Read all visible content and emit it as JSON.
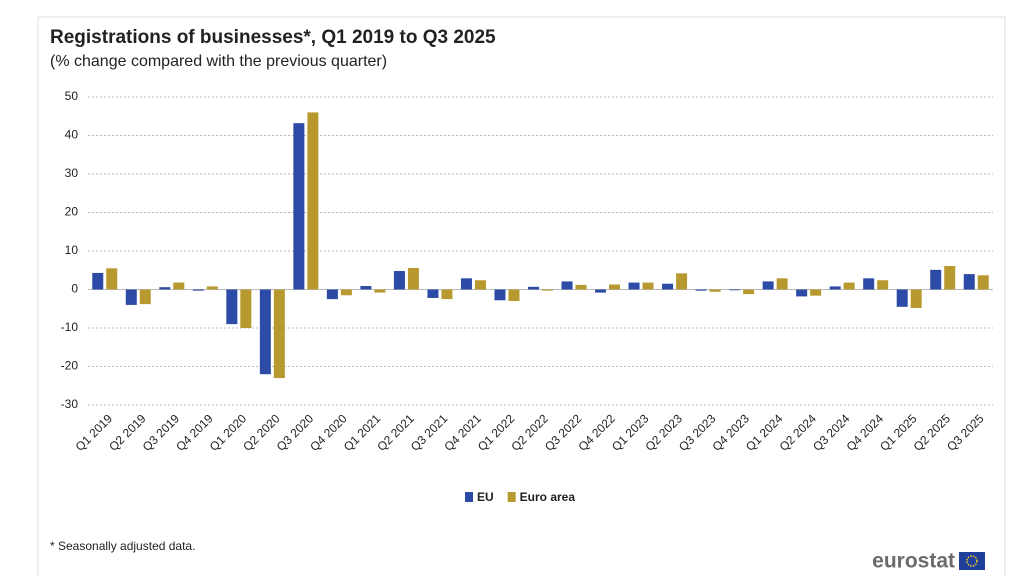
{
  "chart_data": {
    "type": "bar",
    "title": "Registrations of businesses*, Q1 2019 to Q3 2025",
    "subtitle": "(% change compared with the previous quarter)",
    "categories": [
      "Q1 2019",
      "Q2 2019",
      "Q3 2019",
      "Q4 2019",
      "Q1 2020",
      "Q2 2020",
      "Q3 2020",
      "Q4 2020",
      "Q1 2021",
      "Q2 2021",
      "Q3 2021",
      "Q4 2021",
      "Q1 2022",
      "Q2 2022",
      "Q3 2022",
      "Q4 2022",
      "Q1 2023",
      "Q2 2023",
      "Q3 2023",
      "Q4 2023",
      "Q1 2024",
      "Q2 2024",
      "Q3 2024",
      "Q4 2024",
      "Q1 2025",
      "Q2 2025",
      "Q3 2025"
    ],
    "series": [
      {
        "name": "EU",
        "color": "#2b4ba6",
        "values": [
          4.3,
          -4,
          0.6,
          -0.3,
          -9,
          -22,
          43.2,
          -2.5,
          0.9,
          4.8,
          -2.2,
          2.9,
          -2.8,
          0.7,
          2.1,
          -0.8,
          1.8,
          1.5,
          -0.3,
          -0.2,
          2.1,
          -1.8,
          0.8,
          2.9,
          -4.5,
          5.1,
          4
        ]
      },
      {
        "name": "Euro area",
        "color": "#b8992f",
        "values": [
          5.5,
          -3.8,
          1.8,
          0.8,
          -10,
          -23,
          46,
          -1.5,
          -0.8,
          5.6,
          -2.5,
          2.4,
          -3,
          -0.3,
          1.2,
          1.3,
          1.8,
          4.2,
          -0.6,
          -1.2,
          2.9,
          -1.6,
          1.8,
          2.4,
          -4.8,
          6.1,
          3.7
        ]
      }
    ],
    "ylim": [
      -30,
      50
    ],
    "yticks": [
      -30,
      -20,
      -10,
      0,
      10,
      20,
      30,
      40,
      50
    ],
    "grid": true,
    "legend": "bottom",
    "note": "* Seasonally adjusted data."
  },
  "logo": "eurostat"
}
